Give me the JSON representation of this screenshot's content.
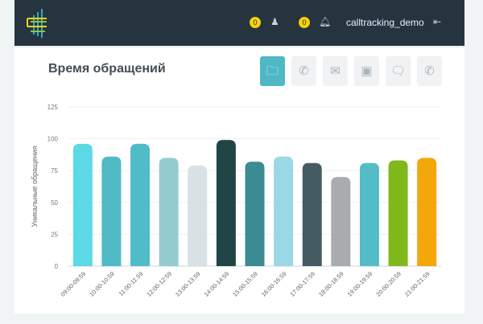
{
  "header": {
    "user": "calltracking_demo",
    "badge1": "0",
    "badge2": "0",
    "icons": [
      "contacts-icon",
      "bell-icon",
      "logout-icon"
    ]
  },
  "page": {
    "title": "Время обращений",
    "tabs": [
      {
        "icon": "folder-form-icon",
        "active": true
      },
      {
        "icon": "phone-icon"
      },
      {
        "icon": "envelope-icon"
      },
      {
        "icon": "browser-window-icon"
      },
      {
        "icon": "chat-icon"
      },
      {
        "icon": "callback-icon"
      }
    ]
  },
  "chart_data": {
    "type": "bar",
    "title": "",
    "xlabel": "",
    "ylabel": "Уникальные обращения",
    "ylim": [
      0,
      125
    ],
    "yticks": [
      "0",
      "25",
      "50",
      "75",
      "100",
      "125"
    ],
    "grid": true,
    "categories": [
      "09:00-09:59",
      "10:00-10:59",
      "11:00-11:59",
      "12:00-12:59",
      "13:00-13:59",
      "14:00-14:59",
      "15:00-15:59",
      "16:00-16:59",
      "17:00-17:59",
      "18:00-18:59",
      "19:00-19:59",
      "20:00-20:59",
      "21:00-21:59"
    ],
    "values": [
      96,
      86,
      96,
      85,
      79,
      99,
      82,
      86,
      81,
      70,
      81,
      83,
      85
    ],
    "colors": [
      "#5bd9e4",
      "#4fbac6",
      "#4fbcc8",
      "#93ccd0",
      "#d8e1e3",
      "#1f4547",
      "#3b8b94",
      "#9bd8e6",
      "#445b62",
      "#a8acae",
      "#54bcc6",
      "#80b81a",
      "#f4a70a"
    ]
  }
}
